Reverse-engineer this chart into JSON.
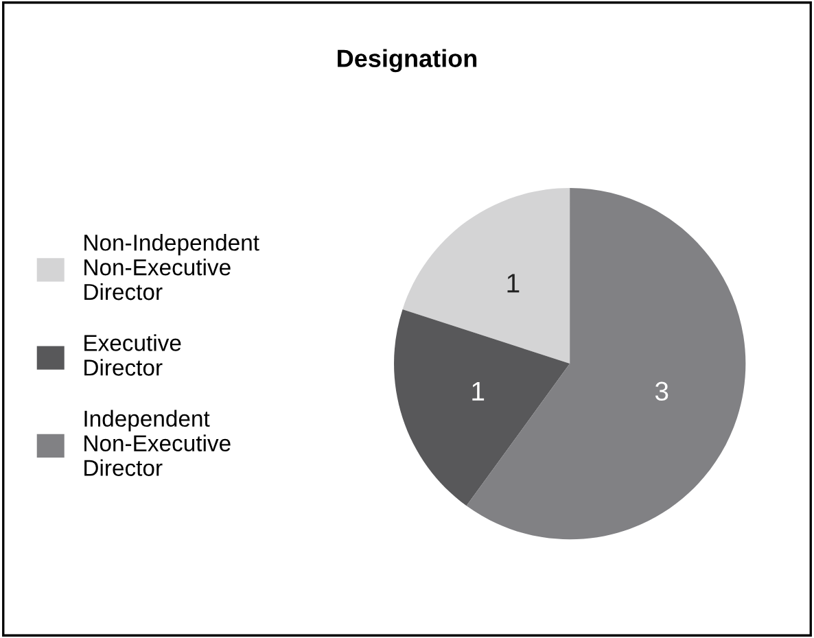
{
  "chart_data": {
    "type": "pie",
    "title": "Designation",
    "categories": [
      "Non-Independent Non-Executive Director",
      "Executive Director",
      "Independent Non-Executive Director"
    ],
    "values": [
      1,
      1,
      3
    ],
    "colors": [
      "#d4d4d5",
      "#58585a",
      "#818184"
    ],
    "data_labels": true,
    "legend": "left"
  }
}
